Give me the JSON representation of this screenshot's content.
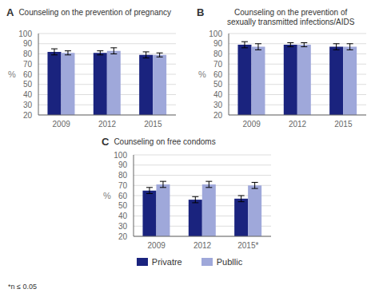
{
  "chart_data": [
    {
      "type": "bar",
      "title": "Counseling on the prevention of pregnancy",
      "annotations": [
        "A"
      ],
      "y_label": "%",
      "categories": [
        "2009",
        "2012",
        "2015"
      ],
      "series": [
        {
          "name": "Privatre",
          "color": "#1a237e",
          "values": [
            82,
            81,
            79
          ],
          "errors": [
            3,
            2,
            3
          ]
        },
        {
          "name": "Publlic",
          "color": "#9fa8da",
          "values": [
            81,
            83,
            79
          ],
          "errors": [
            2,
            3,
            2
          ]
        }
      ],
      "ylim": [
        20,
        100
      ],
      "yticks": [
        20,
        30,
        40,
        50,
        60,
        70,
        80,
        90,
        100
      ],
      "grid": true
    },
    {
      "type": "bar",
      "title": "Counseling on the prevention of\nsexually transmitted infections/AIDS",
      "annotations": [
        "B"
      ],
      "y_label": "%",
      "categories": [
        "2009",
        "2012",
        "2015"
      ],
      "series": [
        {
          "name": "Privatre",
          "color": "#1a237e",
          "values": [
            89,
            89,
            87
          ],
          "errors": [
            3,
            2,
            3
          ]
        },
        {
          "name": "Publlic",
          "color": "#9fa8da",
          "values": [
            87,
            89,
            87
          ],
          "errors": [
            3,
            2,
            3
          ]
        }
      ],
      "ylim": [
        20,
        100
      ],
      "yticks": [
        20,
        30,
        40,
        50,
        60,
        70,
        80,
        90,
        100
      ],
      "grid": true
    },
    {
      "type": "bar",
      "title": "Counseling on free condoms",
      "annotations": [
        "C",
        "*n ≤ 0.05"
      ],
      "y_label": "%",
      "categories": [
        "2009",
        "2012",
        "2015*"
      ],
      "series": [
        {
          "name": "Privatre",
          "color": "#1a237e",
          "values": [
            65,
            56,
            57
          ],
          "errors": [
            3,
            3,
            3
          ]
        },
        {
          "name": "Publlic",
          "color": "#9fa8da",
          "values": [
            71,
            71,
            70
          ],
          "errors": [
            3,
            3,
            3
          ]
        }
      ],
      "ylim": [
        20,
        100
      ],
      "yticks": [
        20,
        30,
        40,
        50,
        60,
        70,
        80,
        90,
        100
      ],
      "grid": true,
      "legend": "bottom"
    }
  ]
}
